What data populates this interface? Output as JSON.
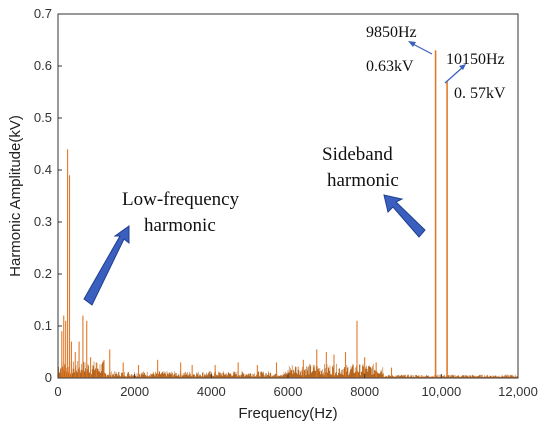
{
  "chart_data": {
    "type": "line",
    "title": "",
    "xlabel": "Frequency(Hz)",
    "ylabel": "Harmonic Amplitude(kV)",
    "xlim": [
      0,
      12000
    ],
    "ylim": [
      0,
      0.7
    ],
    "x_ticks": [
      0,
      2000,
      4000,
      6000,
      8000,
      10000,
      12000
    ],
    "x_tick_labels": [
      "0",
      "2000",
      "4000",
      "6000",
      "8000",
      "10,000",
      "12,000"
    ],
    "y_ticks": [
      0,
      0.1,
      0.2,
      0.3,
      0.4,
      0.5,
      0.6,
      0.7
    ],
    "y_tick_labels": [
      "0",
      "0.1",
      "0.2",
      "0.3",
      "0.4",
      "0.5",
      "0.6",
      "0.7"
    ],
    "grid": false,
    "series_color": "#e07a2a",
    "dense_color": "#b5651d",
    "arrow_color": "#3a5fbf",
    "spikes": [
      {
        "x": 100,
        "y": 0.09
      },
      {
        "x": 150,
        "y": 0.12
      },
      {
        "x": 200,
        "y": 0.11
      },
      {
        "x": 250,
        "y": 0.44
      },
      {
        "x": 300,
        "y": 0.39
      },
      {
        "x": 350,
        "y": 0.07
      },
      {
        "x": 450,
        "y": 0.05
      },
      {
        "x": 550,
        "y": 0.07
      },
      {
        "x": 650,
        "y": 0.12
      },
      {
        "x": 750,
        "y": 0.11
      },
      {
        "x": 850,
        "y": 0.04
      },
      {
        "x": 1000,
        "y": 0.03
      },
      {
        "x": 1200,
        "y": 0.035
      },
      {
        "x": 1350,
        "y": 0.055
      },
      {
        "x": 1700,
        "y": 0.03
      },
      {
        "x": 2100,
        "y": 0.025
      },
      {
        "x": 2600,
        "y": 0.035
      },
      {
        "x": 3200,
        "y": 0.03
      },
      {
        "x": 3500,
        "y": 0.025
      },
      {
        "x": 4100,
        "y": 0.025
      },
      {
        "x": 4700,
        "y": 0.03
      },
      {
        "x": 5200,
        "y": 0.025
      },
      {
        "x": 5700,
        "y": 0.03
      },
      {
        "x": 6400,
        "y": 0.035
      },
      {
        "x": 6750,
        "y": 0.055
      },
      {
        "x": 7000,
        "y": 0.05
      },
      {
        "x": 7200,
        "y": 0.045
      },
      {
        "x": 7500,
        "y": 0.05
      },
      {
        "x": 7800,
        "y": 0.11
      },
      {
        "x": 8000,
        "y": 0.04
      },
      {
        "x": 8300,
        "y": 0.03
      },
      {
        "x": 8700,
        "y": 0.02
      },
      {
        "x": 9850,
        "y": 0.63
      },
      {
        "x": 10150,
        "y": 0.57
      }
    ],
    "noise_bands": [
      {
        "x_start": 0,
        "x_end": 1200,
        "y": 0.03
      },
      {
        "x_start": 1200,
        "y_level": 0,
        "x_end": 6000,
        "y": 0.012
      },
      {
        "x_start": 6000,
        "x_end": 8500,
        "y": 0.025
      },
      {
        "x_start": 8500,
        "x_end": 12000,
        "y": 0.006
      }
    ],
    "annotations": [
      {
        "id": "low",
        "lines": [
          "Low-frequency",
          "harmonic"
        ]
      },
      {
        "id": "side",
        "lines": [
          "Sideband",
          "harmonic"
        ]
      },
      {
        "id": "p1",
        "freq": "9850Hz",
        "amp": "0.63kV"
      },
      {
        "id": "p2",
        "freq": "10150Hz",
        "amp": "0. 57kV"
      }
    ]
  }
}
